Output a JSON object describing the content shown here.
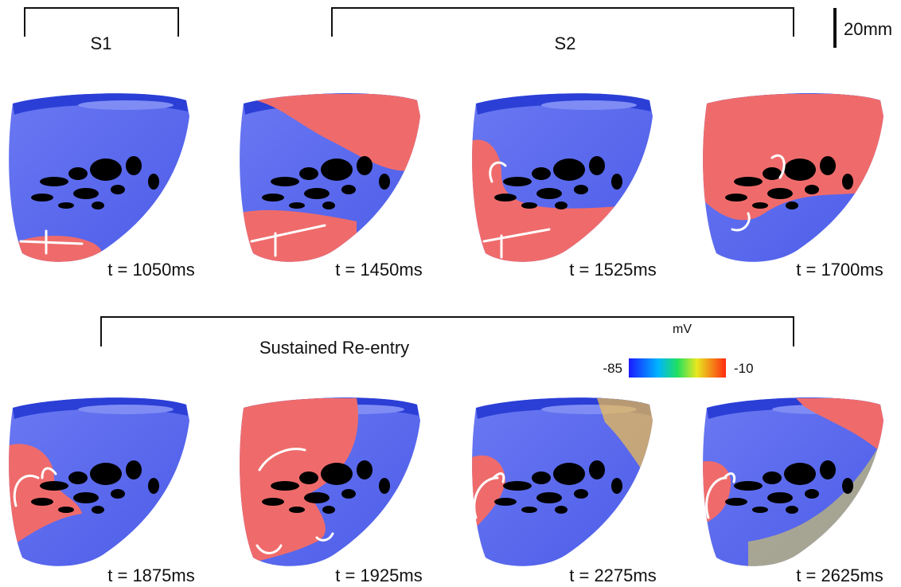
{
  "header": {
    "s1": "S1",
    "s2": "S2",
    "scale_bar": "20mm"
  },
  "row1": {
    "times": [
      "t = 1050ms",
      "t = 1450ms",
      "t = 1525ms",
      "t = 1700ms"
    ]
  },
  "row2": {
    "label": "Sustained Re-entry",
    "times": [
      "t = 1875ms",
      "t = 1925ms",
      "t = 2275ms",
      "t = 2625ms"
    ]
  },
  "colorbar": {
    "unit": "mV",
    "min": "-85",
    "max": "-10"
  }
}
